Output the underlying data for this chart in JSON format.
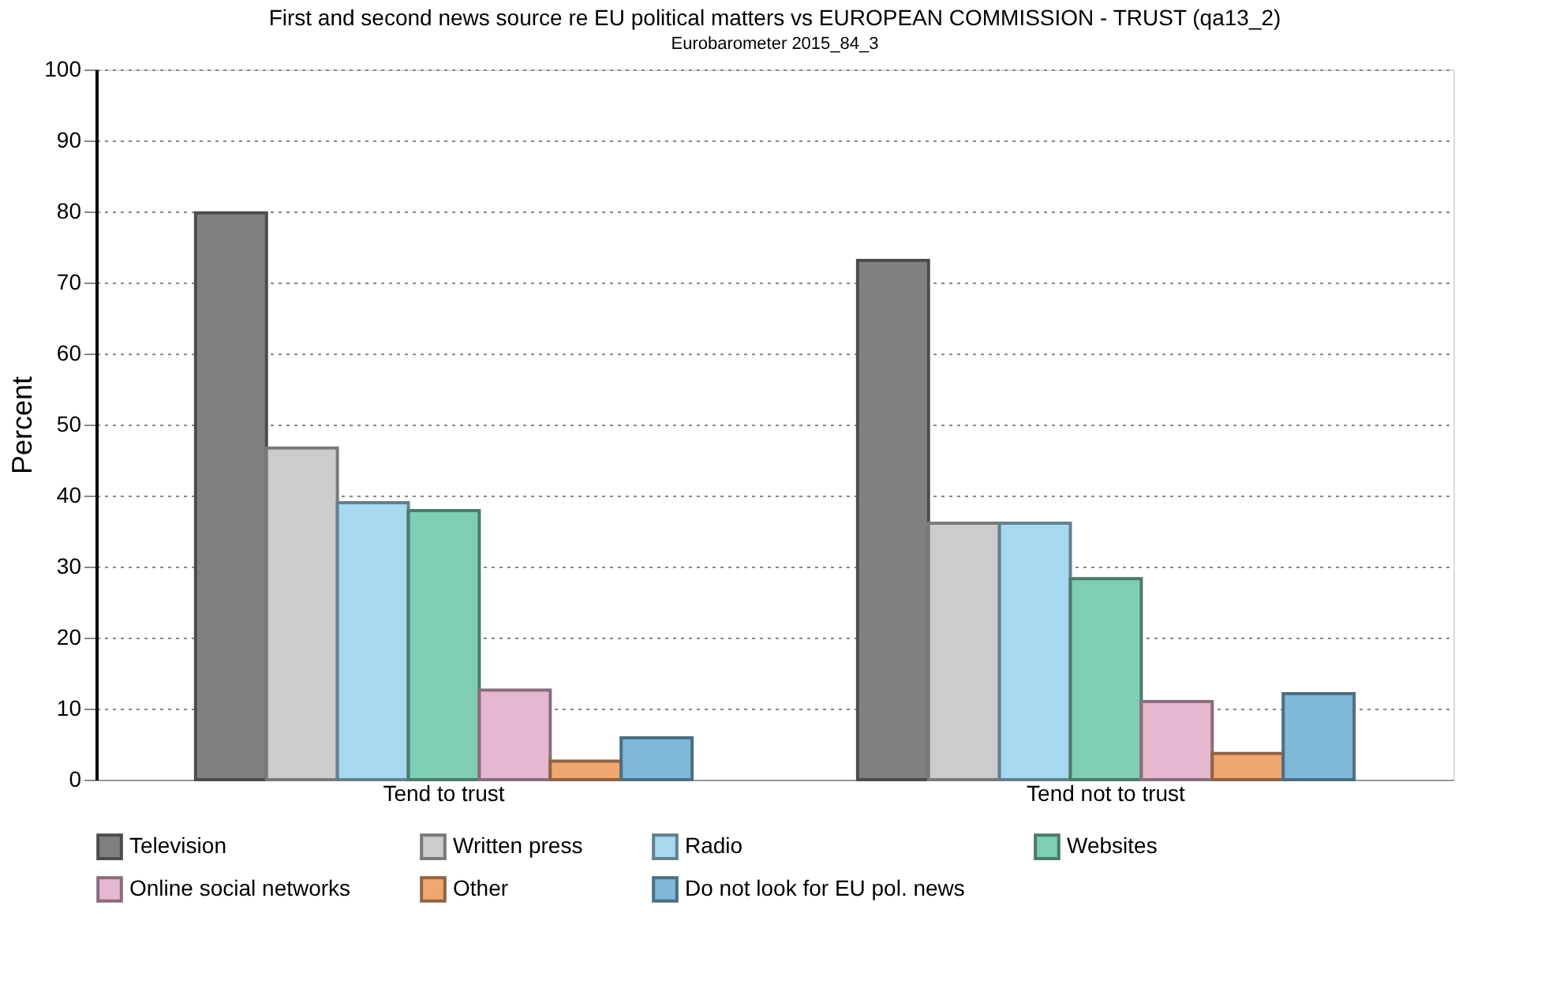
{
  "chart_data": {
    "type": "bar",
    "title": "First and second news source re EU political matters vs EUROPEAN COMMISSION - TRUST (qa13_2)",
    "subtitle": "Eurobarometer 2015_84_3",
    "ylabel": "Percent",
    "categories": [
      "Tend to trust",
      "Tend not to trust"
    ],
    "series": [
      {
        "name": "Television",
        "color": "#808080",
        "values": [
          79.8,
          73.1
        ]
      },
      {
        "name": "Written press",
        "color": "#cccccc",
        "values": [
          46.7,
          36.1
        ]
      },
      {
        "name": "Radio",
        "color": "#a6d8f0",
        "values": [
          39.0,
          36.1
        ]
      },
      {
        "name": "Websites",
        "color": "#80cdb5",
        "values": [
          37.9,
          28.3
        ]
      },
      {
        "name": "Online social networks",
        "color": "#e6b8d0",
        "values": [
          12.6,
          11.0
        ]
      },
      {
        "name": "Other",
        "color": "#f0a870",
        "values": [
          2.6,
          3.7
        ]
      },
      {
        "name": "Do not look for EU pol. news",
        "color": "#80b8d8",
        "values": [
          5.9,
          12.1
        ]
      }
    ],
    "ylim": [
      0,
      100
    ],
    "yticks": [
      0,
      10,
      20,
      30,
      40,
      50,
      60,
      70,
      80,
      90,
      100
    ],
    "grid": "y",
    "legend": "bottom"
  }
}
